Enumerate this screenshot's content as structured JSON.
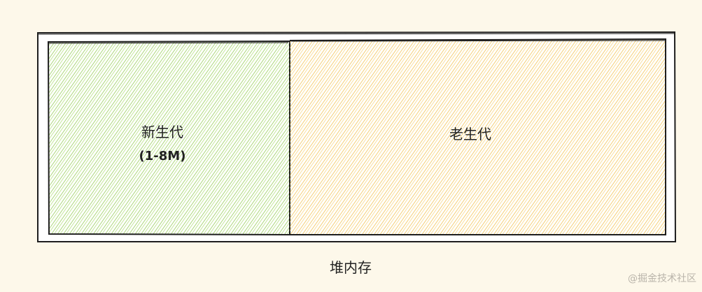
{
  "diagram": {
    "young": {
      "title": "新生代",
      "size": "(1-8M)"
    },
    "old": {
      "title": "老生代"
    },
    "caption": "堆内存"
  },
  "watermark": "@掘金技术社区",
  "colors": {
    "background": "#fdf8ea",
    "young_fill": "#8fcf3a",
    "old_fill": "#f4bd3b",
    "stroke": "#1e1e1e"
  }
}
